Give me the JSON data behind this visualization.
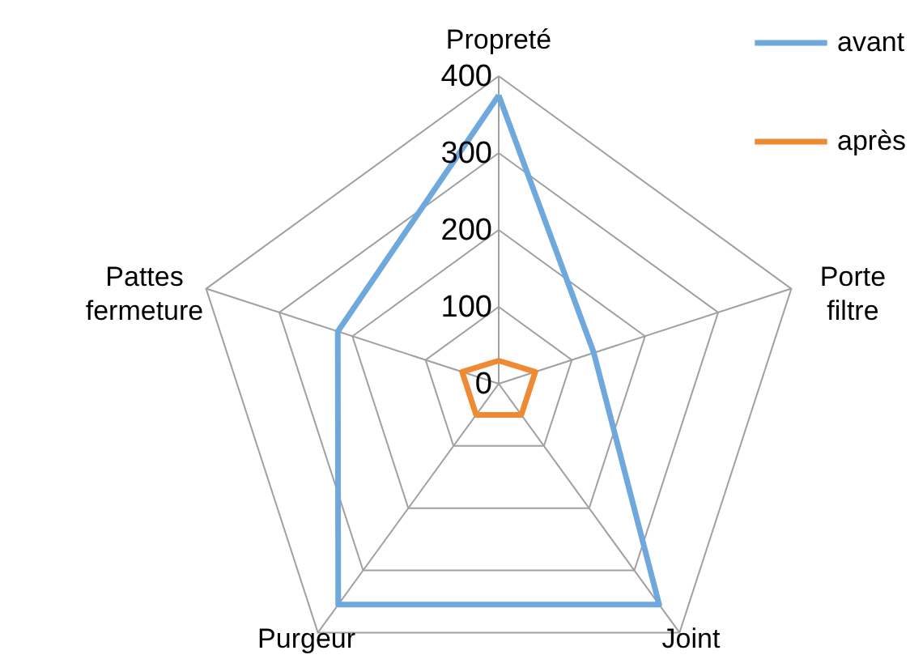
{
  "chart_data": {
    "type": "radar",
    "categories": [
      "Propreté",
      "Porte filtre",
      "Joint",
      "Purgeur",
      "Pattes fermeture"
    ],
    "series": [
      {
        "name": "avant",
        "color": "#6fa8dc",
        "values": [
          375,
          130,
          355,
          355,
          220
        ]
      },
      {
        "name": "après",
        "color": "#f08a32",
        "values": [
          30,
          50,
          50,
          50,
          50
        ]
      }
    ],
    "ylim": [
      0,
      400
    ],
    "yticks": [
      0,
      100,
      200,
      300,
      400
    ],
    "grid": true,
    "legend": "top right"
  }
}
